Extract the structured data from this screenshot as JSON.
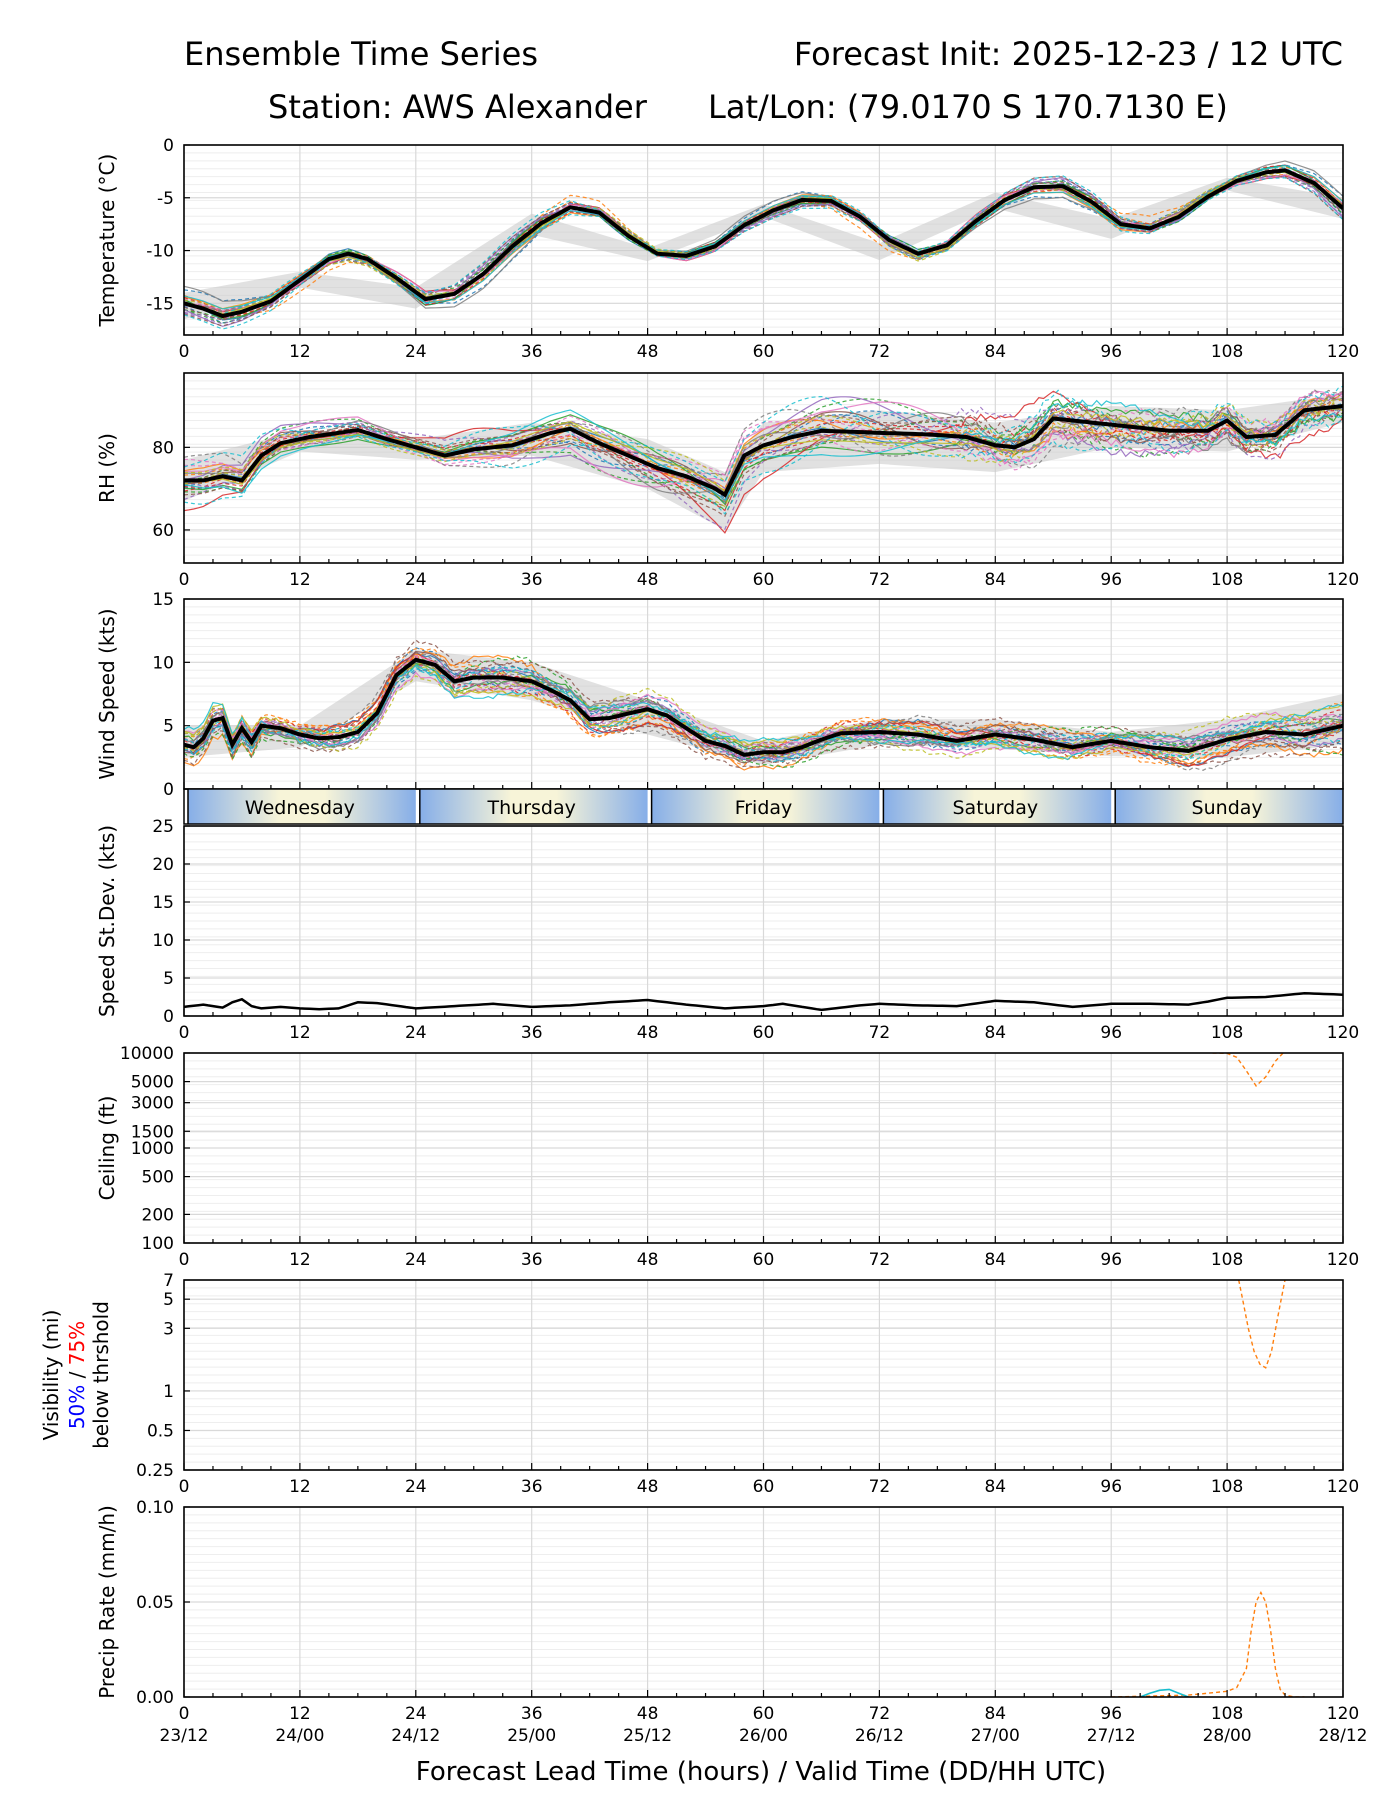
{
  "header": {
    "title_left": "Ensemble Time Series",
    "title_right": "Forecast Init: 2025-12-23 / 12 UTC",
    "station": "Station: AWS Alexander",
    "latlon": "Lat/Lon: (79.0170 S 170.7130 E)"
  },
  "colors": {
    "mean": "#000000",
    "spread": "#c8c8c8",
    "grid": "#d9d9d9",
    "members": [
      "#1f77b4",
      "#ff7f0e",
      "#2ca02c",
      "#d62728",
      "#9467bd",
      "#8c564b",
      "#e377c2",
      "#7f7f7f",
      "#bcbd22",
      "#17becf"
    ],
    "day_band_blue": "#86aee8",
    "day_band_cream": "#f7f4d8",
    "label_blue": "#0000ff",
    "label_red": "#ff0000"
  },
  "day_bands": {
    "hour_ranges": [
      [
        0,
        24
      ],
      [
        24,
        48
      ],
      [
        48,
        72
      ],
      [
        72,
        96
      ],
      [
        96,
        120
      ]
    ],
    "labels": [
      "Wednesday",
      "Thursday",
      "Friday",
      "Saturday",
      "Sunday"
    ]
  },
  "x_axis": {
    "label": "Forecast Lead Time (hours) / Valid Time (DD/HH UTC)",
    "range": [
      0,
      120
    ],
    "ticks": [
      "0",
      "12",
      "24",
      "36",
      "48",
      "60",
      "72",
      "84",
      "96",
      "108",
      "120"
    ],
    "valid_times": [
      "23/12",
      "24/00",
      "24/12",
      "25/00",
      "25/12",
      "26/00",
      "26/12",
      "27/00",
      "27/12",
      "28/00",
      "28/12"
    ]
  },
  "chart_data": [
    {
      "type": "line",
      "id": "temperature",
      "ylabel": "Temperature (°C)",
      "ylim": [
        -18,
        0
      ],
      "yticks": [
        "0",
        "-5",
        "-10",
        "-15"
      ],
      "ytick_values": [
        0,
        -5,
        -10,
        -15
      ],
      "grid": true,
      "mean": {
        "x": [
          0,
          2,
          4,
          6,
          9,
          12,
          15,
          17,
          19,
          22,
          25,
          28,
          31,
          34,
          37,
          40,
          43,
          46,
          49,
          52,
          55,
          58,
          61,
          64,
          67,
          70,
          73,
          76,
          79,
          82,
          85,
          88,
          91,
          94,
          97,
          100,
          103,
          106,
          109,
          112,
          114,
          117,
          120
        ],
        "y": [
          -15,
          -15.5,
          -16.2,
          -15.8,
          -14.8,
          -12.8,
          -10.8,
          -10.3,
          -10.8,
          -12.6,
          -14.6,
          -14.1,
          -12.2,
          -9.6,
          -7.4,
          -5.9,
          -6.4,
          -8.6,
          -10.3,
          -10.5,
          -9.6,
          -7.6,
          -6.2,
          -5.2,
          -5.3,
          -6.8,
          -9,
          -10.3,
          -9.5,
          -7.2,
          -5.2,
          -4,
          -3.9,
          -5.4,
          -7.5,
          -7.9,
          -6.8,
          -4.9,
          -3.4,
          -2.6,
          -2.4,
          -3.6,
          -6
        ]
      },
      "spread": {
        "x": [
          0,
          12,
          24,
          36,
          48,
          60,
          72,
          84,
          96,
          108,
          120
        ],
        "low": [
          -16.5,
          -13.5,
          -15.5,
          -8.5,
          -11,
          -6.8,
          -10.9,
          -6,
          -8.9,
          -4.3,
          -7
        ],
        "high": [
          -14,
          -12,
          -13.5,
          -6.5,
          -9.8,
          -5.6,
          -9.3,
          -4.5,
          -7,
          -3.1,
          -5
        ]
      }
    },
    {
      "type": "line",
      "id": "rh",
      "ylabel": "RH (%)",
      "ylim": [
        52,
        98
      ],
      "yticks": [
        "60",
        "80"
      ],
      "ytick_values": [
        60,
        80
      ],
      "grid": true,
      "mean": {
        "x": [
          0,
          2,
          4,
          6,
          8,
          10,
          13,
          16,
          18,
          21,
          24,
          27,
          30,
          34,
          38,
          40,
          43,
          46,
          49,
          52,
          55,
          56,
          58,
          60,
          63,
          66,
          69,
          72,
          75,
          78,
          81,
          84,
          86,
          88,
          90,
          94,
          98,
          102,
          106,
          108,
          110,
          113,
          116,
          120
        ],
        "y": [
          72,
          72,
          73,
          72,
          78,
          81,
          82.5,
          83.5,
          84.2,
          82,
          80,
          78,
          79.5,
          80.5,
          83.5,
          84.5,
          81,
          78,
          75,
          73,
          70,
          68.5,
          78,
          80.5,
          82.5,
          84,
          83.8,
          83.5,
          83.3,
          83,
          82.5,
          80.5,
          80,
          82,
          87,
          86,
          85,
          84,
          84,
          86.5,
          82.5,
          83,
          89,
          90
        ]
      },
      "spread": {
        "x": [
          0,
          12,
          24,
          36,
          48,
          56,
          60,
          72,
          84,
          96,
          108,
          120
        ],
        "low": [
          67,
          79,
          77,
          78,
          70,
          60,
          74,
          76,
          74,
          80,
          79,
          86
        ],
        "high": [
          77,
          84,
          82,
          86,
          82,
          74,
          86,
          89,
          86,
          90,
          89,
          93
        ]
      }
    },
    {
      "type": "line",
      "id": "wind_speed",
      "ylabel": "Wind Speed (kts)",
      "ylim": [
        0,
        15
      ],
      "yticks": [
        "0",
        "5",
        "10",
        "15"
      ],
      "ytick_values": [
        0,
        5,
        10,
        15
      ],
      "grid": true,
      "mean": {
        "x": [
          0,
          1,
          2,
          3,
          4,
          5,
          6,
          7,
          8,
          10,
          12,
          14,
          16,
          18,
          20,
          22,
          24,
          26,
          28,
          30,
          33,
          36,
          38,
          40,
          42,
          44,
          48,
          50,
          52,
          54,
          56,
          58,
          60,
          62,
          64,
          66,
          68,
          72,
          76,
          80,
          84,
          88,
          92,
          96,
          100,
          104,
          108,
          112,
          116,
          120
        ],
        "y": [
          3.5,
          3.3,
          4,
          5.4,
          5.6,
          3.5,
          4.8,
          3.7,
          5,
          4.8,
          4.3,
          4,
          4.1,
          4.5,
          6,
          9,
          10.2,
          9.8,
          8.5,
          8.8,
          8.8,
          8.5,
          7.8,
          7,
          5.5,
          5.6,
          6.3,
          5.8,
          4.8,
          3.8,
          3.4,
          2.7,
          2.9,
          2.9,
          3.3,
          3.9,
          4.4,
          4.5,
          4.3,
          3.8,
          4.3,
          3.9,
          3.3,
          3.8,
          3.3,
          3,
          3.9,
          4.5,
          4.3,
          5
        ]
      },
      "spread": {
        "x": [
          0,
          12,
          24,
          36,
          48,
          60,
          72,
          84,
          96,
          108,
          120
        ],
        "low": [
          2.5,
          3.3,
          8.5,
          7,
          4.3,
          1.9,
          3.5,
          3.2,
          2.6,
          2.5,
          3.5
        ],
        "high": [
          5,
          5,
          11,
          10,
          7,
          3.8,
          5.5,
          5.5,
          4.5,
          5.5,
          7.5
        ]
      }
    },
    {
      "type": "line",
      "id": "speed_stdev",
      "ylabel": "Speed St.Dev. (kts)",
      "ylim": [
        0,
        25
      ],
      "yticks": [
        "0",
        "5",
        "10",
        "15",
        "20",
        "25"
      ],
      "ytick_values": [
        0,
        5,
        10,
        15,
        20,
        25
      ],
      "grid": true,
      "mean": {
        "x": [
          0,
          2,
          4,
          5,
          6,
          7,
          8,
          10,
          12,
          14,
          16,
          18,
          20,
          24,
          28,
          32,
          36,
          40,
          44,
          48,
          52,
          56,
          60,
          62,
          66,
          70,
          72,
          76,
          80,
          84,
          88,
          92,
          96,
          100,
          104,
          106,
          108,
          112,
          116,
          120
        ],
        "y": [
          1.2,
          1.5,
          1.1,
          1.8,
          2.2,
          1.3,
          1,
          1.2,
          1,
          0.9,
          1,
          1.8,
          1.7,
          1,
          1.3,
          1.6,
          1.2,
          1.4,
          1.8,
          2.1,
          1.5,
          1,
          1.3,
          1.6,
          0.8,
          1.4,
          1.6,
          1.4,
          1.3,
          2,
          1.8,
          1.2,
          1.6,
          1.6,
          1.5,
          1.9,
          2.4,
          2.5,
          3,
          2.8
        ]
      }
    },
    {
      "type": "line",
      "id": "ceiling",
      "ylabel": "Ceiling (ft)",
      "scale": "log",
      "ylim": [
        100,
        10000
      ],
      "yticks": [
        "10000",
        "5000",
        "3000",
        "1500",
        "1000",
        "500",
        "200",
        "100"
      ],
      "ytick_values": [
        10000,
        5000,
        3000,
        1500,
        1000,
        500,
        200,
        100
      ],
      "grid": true,
      "member_line": {
        "x": [
          106.5,
          108,
          109,
          110,
          111,
          112,
          113,
          113.8
        ],
        "y": [
          10000,
          9900,
          9000,
          6500,
          4500,
          5600,
          8200,
          10000
        ]
      }
    },
    {
      "type": "line",
      "id": "visibility",
      "ylabel": "Visibility (mi)",
      "ylabel_50": "50%",
      "ylabel_sep": " / ",
      "ylabel_75": "75%",
      "ylabel_sub": "below thrshold",
      "scale": "log",
      "ylim": [
        0.25,
        7
      ],
      "yticks": [
        "7",
        "5",
        "3",
        "1",
        "0.5",
        "0.25"
      ],
      "ytick_values": [
        7,
        5,
        3,
        1,
        0.5,
        0.25
      ],
      "grid": true,
      "member_line": {
        "x": [
          109.2,
          109.6,
          110.2,
          110.8,
          111.4,
          112,
          112.6,
          113.2,
          113.6,
          114
        ],
        "y": [
          7,
          5,
          3,
          2,
          1.6,
          1.5,
          2,
          3.5,
          5,
          7
        ]
      }
    },
    {
      "type": "line",
      "id": "precip_rate",
      "ylabel": "Precip Rate (mm/h)",
      "ylim": [
        0,
        0.1
      ],
      "yticks": [
        "0.00",
        "0.05",
        "0.10"
      ],
      "ytick_values": [
        0,
        0.05,
        0.1
      ],
      "grid": true,
      "member_line": {
        "x": [
          96,
          104,
          106,
          108,
          109,
          110,
          110.5,
          111,
          111.5,
          112,
          112.5,
          113,
          113.5,
          114,
          115,
          116
        ],
        "y": [
          0,
          0.001,
          0.002,
          0.003,
          0.005,
          0.015,
          0.035,
          0.05,
          0.055,
          0.05,
          0.035,
          0.015,
          0.004,
          0.001,
          0,
          0
        ]
      },
      "member_line_2": {
        "x": [
          99,
          100,
          101,
          102,
          103,
          104
        ],
        "y": [
          0,
          0.002,
          0.0035,
          0.004,
          0.002,
          0
        ]
      }
    }
  ]
}
